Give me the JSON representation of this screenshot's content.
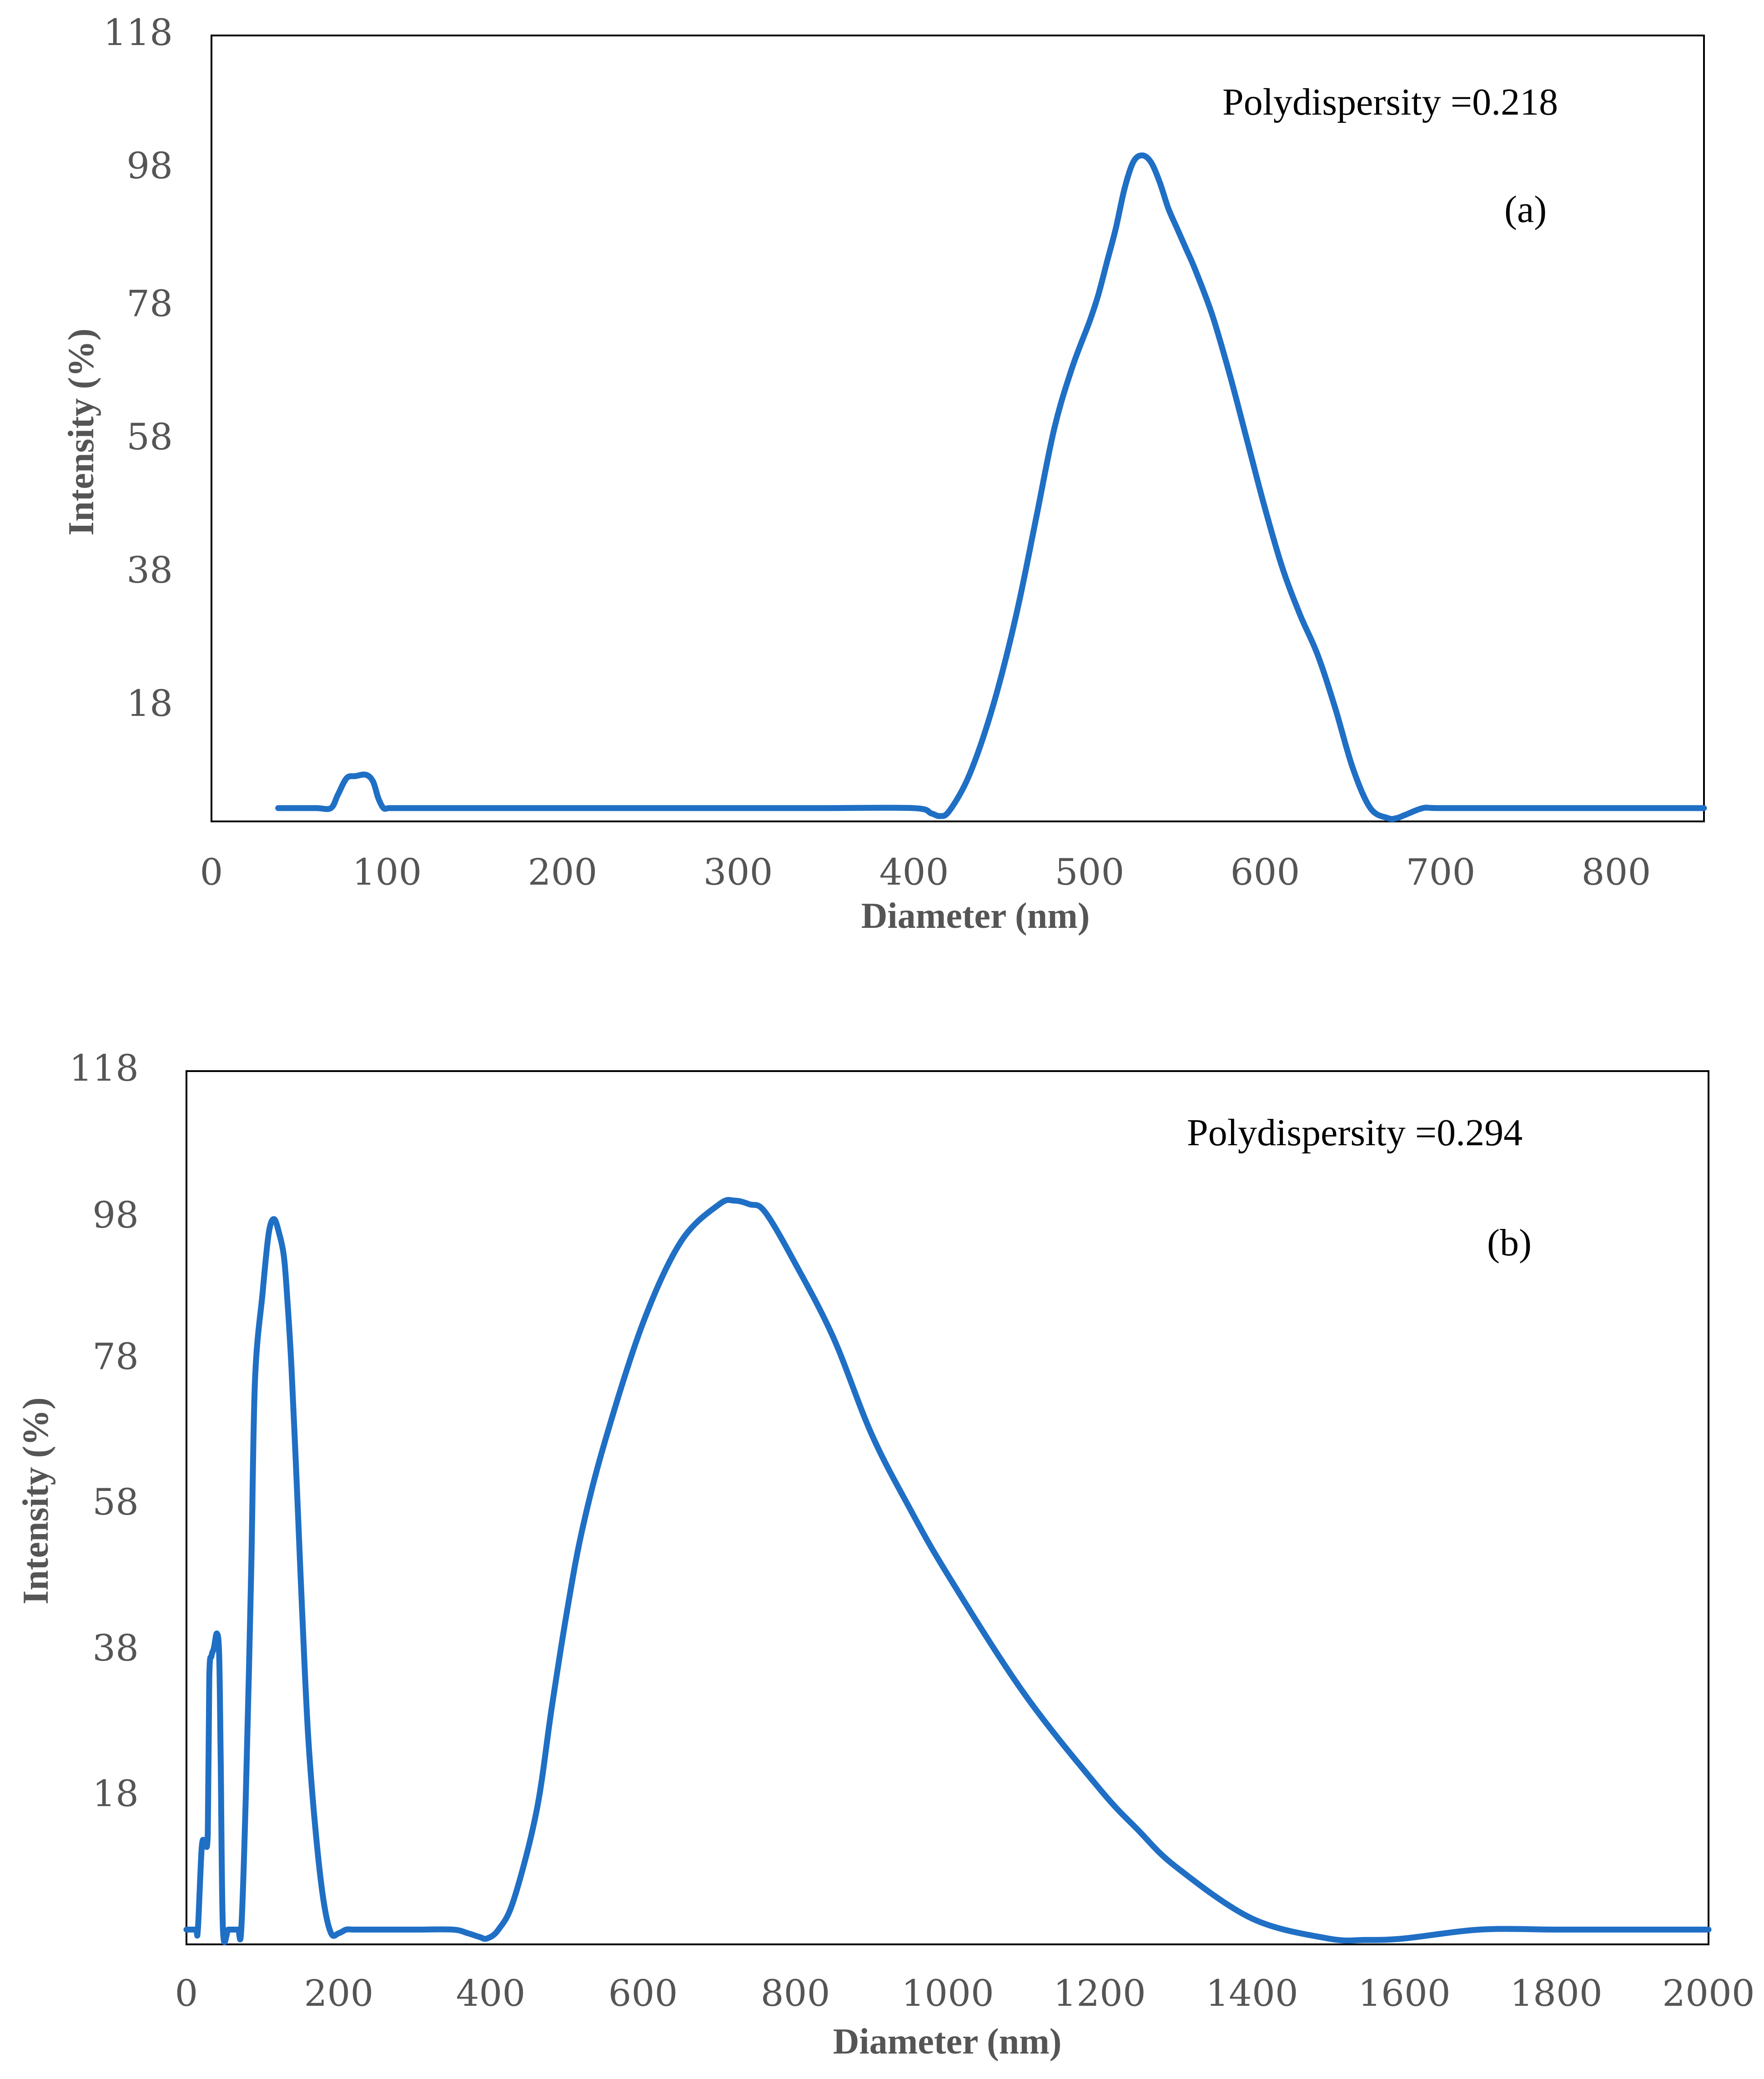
{
  "colors": {
    "series": "#1F6FC5",
    "axis_text": "#555555",
    "frame": "#000000",
    "background": "#FFFFFF"
  },
  "chart_data": [
    {
      "type": "line",
      "panel": "a",
      "title": "",
      "xlabel": "Diameter (nm)",
      "ylabel": "Intensity (%)",
      "xlim": [
        0,
        850
      ],
      "ylim": [
        0,
        118
      ],
      "xticks": [
        "0",
        "100",
        "200",
        "300",
        "400",
        "500",
        "600",
        "700",
        "800"
      ],
      "yticks": [
        "18",
        "38",
        "58",
        "78",
        "98",
        "118"
      ],
      "annotations": {
        "polydispersity": "Polydispersity =0.218",
        "label": "(a)"
      },
      "series": [
        {
          "name": "Intensity",
          "color": "#1F6FC5",
          "x": [
            38,
            50,
            60,
            68,
            72,
            77,
            82,
            88,
            92,
            95,
            98,
            101,
            105,
            110,
            150,
            200,
            250,
            300,
            350,
            400,
            410,
            415,
            420,
            430,
            440,
            450,
            460,
            470,
            480,
            490,
            500,
            505,
            510,
            515,
            520,
            525,
            530,
            535,
            540,
            545,
            550,
            555,
            560,
            570,
            580,
            590,
            600,
            610,
            620,
            630,
            640,
            650,
            660,
            670,
            675,
            680,
            690,
            700,
            750,
            800,
            850
          ],
          "y": [
            2,
            2,
            2,
            2,
            4,
            6.5,
            6.8,
            7,
            6,
            3.5,
            2,
            2,
            2,
            2,
            2,
            2,
            2,
            2,
            2,
            2,
            1.2,
            0.8,
            1.5,
            6,
            13,
            22,
            33,
            46,
            59,
            68,
            75,
            79,
            84,
            89,
            95,
            99,
            100,
            99,
            96,
            92,
            89,
            86,
            83,
            76,
            67,
            57,
            47,
            38,
            31,
            25,
            17,
            8,
            2,
            0.5,
            0.5,
            1,
            2,
            2,
            2,
            2,
            2
          ]
        }
      ]
    },
    {
      "type": "line",
      "panel": "b",
      "title": "",
      "xlabel": "Diameter (nm)",
      "ylabel": "Intensity (%)",
      "xlim": [
        0,
        2000
      ],
      "ylim": [
        0,
        118
      ],
      "xticks": [
        "0",
        "200",
        "400",
        "600",
        "800",
        "1000",
        "1200",
        "1400",
        "1600",
        "1800",
        "2000"
      ],
      "yticks": [
        "18",
        "38",
        "58",
        "78",
        "98",
        "118"
      ],
      "annotations": {
        "polydispersity": "Polydispersity =0.294",
        "label": "(b)"
      },
      "series": [
        {
          "name": "Intensity",
          "color": "#1F6FC5",
          "x": [
            0,
            12,
            15,
            20,
            24,
            28,
            30,
            33,
            36,
            40,
            43,
            45,
            48,
            55,
            62,
            68,
            72,
            78,
            85,
            90,
            100,
            108,
            115,
            122,
            128,
            132,
            138,
            145,
            152,
            160,
            170,
            180,
            190,
            200,
            210,
            220,
            250,
            300,
            350,
            370,
            385,
            395,
            410,
            430,
            460,
            480,
            500,
            520,
            550,
            600,
            650,
            700,
            720,
            740,
            760,
            800,
            850,
            900,
            950,
            1000,
            1100,
            1200,
            1250,
            1300,
            1400,
            1500,
            1550,
            1600,
            1700,
            1800,
            1900,
            2000
          ],
          "y": [
            2,
            2,
            2,
            13,
            14,
            15,
            36,
            39,
            40,
            42,
            39,
            25,
            2,
            2,
            2,
            2,
            2,
            20,
            50,
            76,
            88,
            96,
            98,
            96,
            93,
            88,
            78,
            62,
            45,
            28,
            15,
            6,
            1.5,
            1.5,
            2,
            2,
            2,
            2,
            2,
            1.5,
            1,
            0.8,
            2,
            6,
            18,
            32,
            45,
            56,
            68,
            84,
            95,
            100,
            100.5,
            100,
            99,
            92,
            82,
            69,
            59,
            50,
            34,
            21,
            15.5,
            10.5,
            3.5,
            0.8,
            0.6,
            0.8,
            2,
            2,
            2,
            2
          ]
        }
      ]
    }
  ]
}
